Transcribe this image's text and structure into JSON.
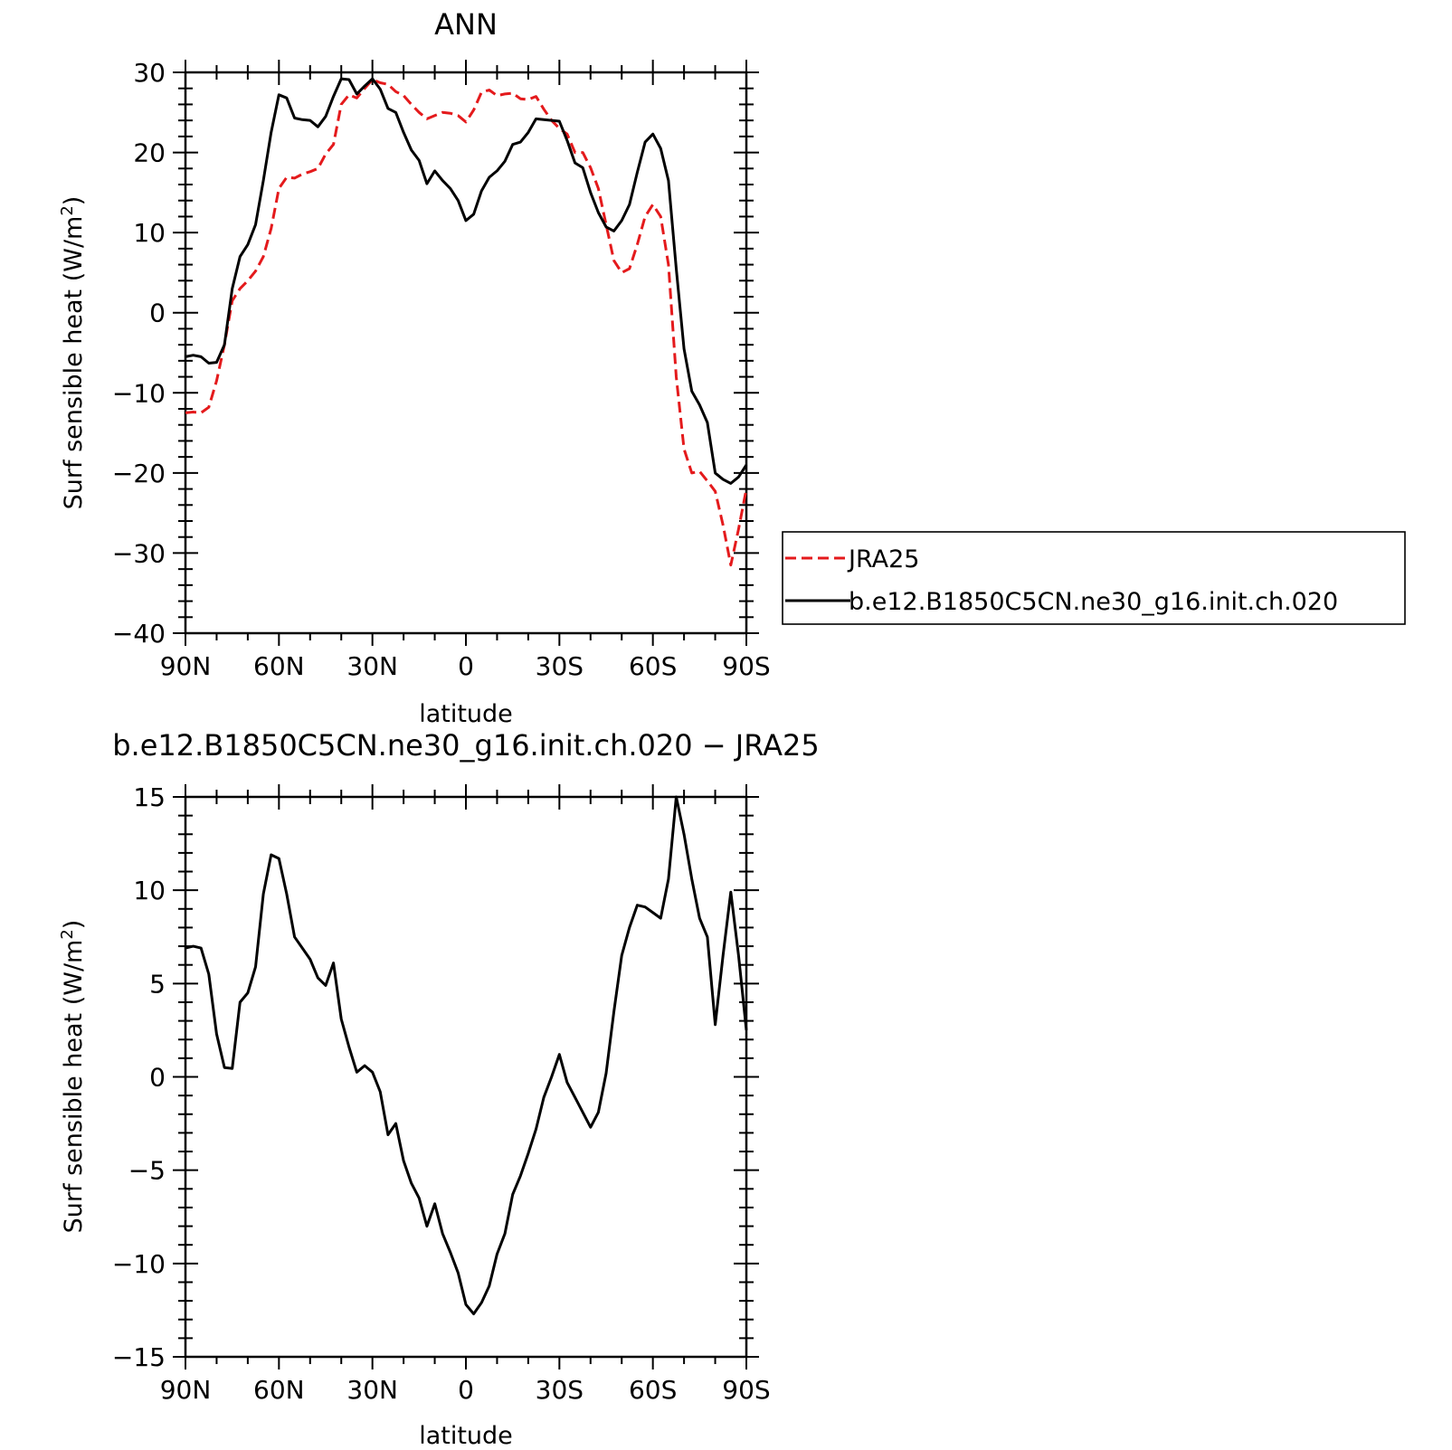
{
  "chart_data": [
    {
      "type": "line",
      "title": "ANN",
      "xlabel": "latitude",
      "ylabel": "Surf sensible heat (W/m",
      "ylabel_sup": "2",
      "ylabel_close": ")",
      "x_tick_labels": [
        "90N",
        "60N",
        "30N",
        "0",
        "30S",
        "60S",
        "90S"
      ],
      "x_tick_values": [
        90,
        60,
        30,
        0,
        -30,
        -60,
        -90
      ],
      "xlim": [
        90,
        -90
      ],
      "ylim": [
        -40,
        30
      ],
      "y_ticks": [
        30,
        20,
        10,
        0,
        -10,
        -20,
        -30,
        -40
      ],
      "grid": false,
      "legend_position": "right",
      "series": [
        {
          "name": "JRA25",
          "color": "#e41a1c",
          "dash": true,
          "x": [
            90,
            87.5,
            85,
            82.5,
            80,
            77.5,
            75,
            72.5,
            70,
            67.5,
            65,
            62.5,
            60,
            57.5,
            55,
            52.5,
            50,
            47.5,
            45,
            42.5,
            40,
            37.5,
            35,
            32.5,
            30,
            27.5,
            25,
            22.5,
            20,
            17.5,
            15,
            12.5,
            10,
            7.5,
            5,
            2.5,
            0,
            -2.5,
            -5,
            -7.5,
            -10,
            -12.5,
            -15,
            -17.5,
            -20,
            -22.5,
            -25,
            -27.5,
            -30,
            -32.5,
            -35,
            -37.5,
            -40,
            -42.5,
            -45,
            -47.5,
            -50,
            -52.5,
            -55,
            -57.5,
            -60,
            -62.5,
            -65,
            -67.5,
            -70,
            -72.5,
            -75,
            -77.5,
            -80,
            -82.5,
            -85,
            -87.5,
            -90
          ],
          "y": [
            -12.5,
            -12.4,
            -12.5,
            -11.8,
            -8.5,
            -4,
            1.5,
            3,
            4,
            5.2,
            7,
            10.5,
            15.5,
            16.9,
            16.8,
            17.3,
            17.6,
            18,
            19.8,
            21,
            26,
            27.2,
            26.8,
            28,
            29.1,
            28.7,
            28.5,
            27.6,
            27.1,
            26,
            25,
            24.2,
            24.6,
            25,
            24.9,
            24.6,
            23.8,
            25.3,
            27.5,
            27.8,
            27.1,
            27.3,
            27.4,
            26.7,
            26.6,
            27,
            25.4,
            24,
            23,
            22.3,
            20,
            20,
            18.1,
            15.5,
            11,
            6.5,
            5,
            5.5,
            8.5,
            12,
            13.5,
            12,
            6,
            -8,
            -17,
            -20,
            -19.8,
            -21,
            -22.3,
            -26.5,
            -31.5,
            -27,
            -22
          ]
        },
        {
          "name": "b.e12.B1850C5CN.ne30_g16.init.ch.020",
          "color": "#000000",
          "dash": false,
          "x": [
            90,
            87.5,
            85,
            82.5,
            80,
            77.5,
            75,
            72.5,
            70,
            67.5,
            65,
            62.5,
            60,
            57.5,
            55,
            52.5,
            50,
            47.5,
            45,
            42.5,
            40,
            37.5,
            35,
            32.5,
            30,
            27.5,
            25,
            22.5,
            20,
            17.5,
            15,
            12.5,
            10,
            7.5,
            5,
            2.5,
            0,
            -2.5,
            -5,
            -7.5,
            -10,
            -12.5,
            -15,
            -17.5,
            -20,
            -22.5,
            -25,
            -27.5,
            -30,
            -32.5,
            -35,
            -37.5,
            -40,
            -42.5,
            -45,
            -47.5,
            -50,
            -52.5,
            -55,
            -57.5,
            -60,
            -62.5,
            -65,
            -67.5,
            -70,
            -72.5,
            -75,
            -77.5,
            -80,
            -82.5,
            -85,
            -87.5,
            -90
          ],
          "y": [
            -5.5,
            -5.3,
            -5.5,
            -6.3,
            -6.2,
            -4,
            3,
            7,
            8.5,
            11,
            16.5,
            22.5,
            27.2,
            26.8,
            24.3,
            24.1,
            24,
            23.2,
            24.5,
            27,
            29.2,
            29.1,
            27.3,
            28.3,
            29.2,
            27.9,
            25.5,
            25,
            22.5,
            20.3,
            19,
            16.1,
            17.7,
            16.5,
            15.5,
            14,
            11.5,
            12.3,
            15.2,
            16.9,
            17.7,
            18.9,
            21,
            21.3,
            22.5,
            24.2,
            24.1,
            24,
            23.9,
            21.5,
            18.7,
            18.1,
            15,
            12.5,
            10.7,
            10.2,
            11.5,
            13.5,
            17.5,
            21.3,
            22.3,
            20.5,
            16.5,
            5.5,
            -4.5,
            -9.8,
            -11.5,
            -13.7,
            -20,
            -20.8,
            -21.3,
            -20.5,
            -19
          ]
        }
      ]
    },
    {
      "type": "line",
      "title": "b.e12.B1850C5CN.ne30_g16.init.ch.020 − JRA25",
      "xlabel": "latitude",
      "ylabel": "Surf sensible heat (W/m",
      "ylabel_sup": "2",
      "ylabel_close": ")",
      "x_tick_labels": [
        "90N",
        "60N",
        "30N",
        "0",
        "30S",
        "60S",
        "90S"
      ],
      "x_tick_values": [
        90,
        60,
        30,
        0,
        -30,
        -60,
        -90
      ],
      "xlim": [
        90,
        -90
      ],
      "ylim": [
        -15,
        15
      ],
      "y_ticks": [
        15,
        10,
        5,
        0,
        -5,
        -10,
        -15
      ],
      "grid": false,
      "series": [
        {
          "color": "#000000",
          "dash": false,
          "x": [
            90,
            87.5,
            85,
            82.5,
            80,
            77.5,
            75,
            72.5,
            70,
            67.5,
            65,
            62.5,
            60,
            57.5,
            55,
            52.5,
            50,
            47.5,
            45,
            42.5,
            40,
            37.5,
            35,
            32.5,
            30,
            27.5,
            25,
            22.5,
            20,
            17.5,
            15,
            12.5,
            10,
            7.5,
            5,
            2.5,
            0,
            -2.5,
            -5,
            -7.5,
            -10,
            -12.5,
            -15,
            -17.5,
            -20,
            -22.5,
            -25,
            -27.5,
            -30,
            -32.5,
            -35,
            -37.5,
            -40,
            -42.5,
            -45,
            -47.5,
            -50,
            -52.5,
            -55,
            -57.5,
            -60,
            -62.5,
            -65,
            -67.5,
            -70,
            -72.5,
            -75,
            -77.5,
            -80,
            -82.5,
            -85,
            -87.5,
            -90
          ],
          "y": [
            6.9,
            7,
            6.9,
            5.5,
            2.3,
            0.5,
            0.45,
            4,
            4.5,
            5.9,
            9.8,
            11.9,
            11.7,
            9.8,
            7.5,
            6.9,
            6.3,
            5.3,
            4.9,
            6.1,
            3.1,
            1.6,
            0.25,
            0.6,
            0.25,
            -0.8,
            -3.1,
            -2.5,
            -4.5,
            -5.7,
            -6.5,
            -8,
            -6.8,
            -8.4,
            -9.4,
            -10.5,
            -12.2,
            -12.7,
            -12.1,
            -11.2,
            -9.5,
            -8.4,
            -6.3,
            -5.3,
            -4.1,
            -2.8,
            -1.1,
            0,
            1.2,
            -0.3,
            -1.1,
            -1.9,
            -2.7,
            -1.9,
            0.2,
            3.5,
            6.5,
            8,
            9.2,
            9.1,
            8.8,
            8.5,
            10.6,
            15,
            13,
            10.6,
            8.5,
            7.5,
            2.8,
            6.5,
            9.9,
            6.5,
            2.5
          ]
        }
      ]
    }
  ]
}
